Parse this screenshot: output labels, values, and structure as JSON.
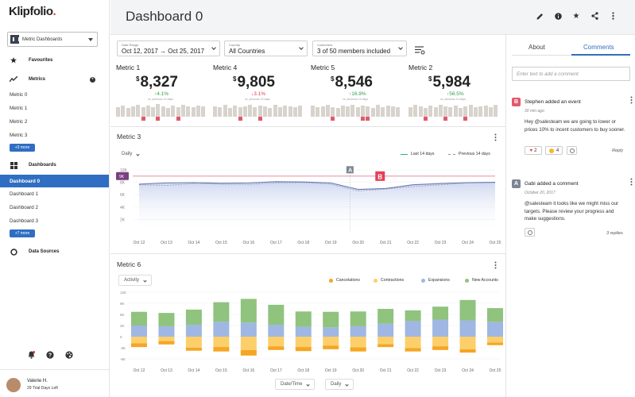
{
  "sidebar": {
    "logo": "Klipfolio",
    "workspace": "Metric Dashboards",
    "favourites_label": "Favourites",
    "metrics_label": "Metrics",
    "metrics": [
      "Metric 0",
      "Metric 1",
      "Metric 2",
      "Metric 3"
    ],
    "metrics_more": "+3 more",
    "dashboards_label": "Dashboards",
    "dashboards": [
      "Dashboard 0",
      "Dashboard 1",
      "Dashboard 2",
      "Dashboard 3"
    ],
    "dashboards_more": "+7 more",
    "datasources_label": "Data Sources",
    "user_name": "Valerie H.",
    "user_trial": "29 Trial Days Left"
  },
  "header": {
    "title": "Dashboard 0"
  },
  "filters": {
    "date_label": "Date Range",
    "date_value": "Oct 12, 2017 → Oct 25, 2017",
    "country_label": "Country",
    "country_value": "All Countries",
    "customers_label": "Customers",
    "customers_value": "3 of 50 members included"
  },
  "metrics": [
    {
      "name": "Metric 1",
      "currency": "$",
      "value": "8,327",
      "delta": "↑4.1%",
      "dir": "up",
      "caption": "vs. previous 14 days"
    },
    {
      "name": "Metric 4",
      "currency": "$",
      "value": "9,805",
      "delta": "↓3.1%",
      "dir": "down",
      "caption": "vs. previous 14 days"
    },
    {
      "name": "Metric 5",
      "currency": "$",
      "value": "8,546",
      "delta": "↑16.9%",
      "dir": "up",
      "caption": "vs. previous 14 days"
    },
    {
      "name": "Metric 2",
      "currency": "$",
      "value": "5,984",
      "delta": "↑56.5%",
      "dir": "up",
      "caption": "vs. previous 14 days"
    }
  ],
  "metric3": {
    "title": "Metric 3",
    "interval": "Daily",
    "legend_last": "Last 14 days",
    "legend_prev": "Previous 14 days",
    "target_label": "9K",
    "annotations": [
      "A",
      "B"
    ]
  },
  "metric6": {
    "title": "Metric 6",
    "view": "Activity",
    "legend": [
      "Cancelations",
      "Contractions",
      "Expansions",
      "New Accounts"
    ],
    "footer_dd1": "Date/Time",
    "footer_dd2": "Daily"
  },
  "colors": {
    "accent": "#2f6ec2",
    "line_last": "#2bb09a",
    "cancelations": "#f5a623",
    "contractions": "#fccf6b",
    "expansions": "#9fb7e2",
    "new_accounts": "#8fc37e",
    "negative": "#e25a6b"
  },
  "chart_data": [
    {
      "type": "line",
      "title": "Metric 3",
      "x": [
        "Oct 12",
        "Oct 13",
        "Oct 14",
        "Oct 15",
        "Oct 16",
        "Oct 17",
        "Oct 18",
        "Oct 19",
        "Oct 20",
        "Oct 21",
        "Oct 22",
        "Oct 23",
        "Oct 24",
        "Oct 25"
      ],
      "yticks": [
        "10K",
        "8K",
        "6K",
        "4K",
        "2K"
      ],
      "ylim": [
        0,
        10000
      ],
      "series": [
        {
          "name": "Last 14 days",
          "values": [
            7700,
            7900,
            7950,
            7850,
            7900,
            8100,
            8050,
            7900,
            6850,
            7000,
            7600,
            7800,
            7950,
            8000
          ]
        },
        {
          "name": "Previous 14 days",
          "values": [
            7600,
            7500,
            7800,
            7700,
            7650,
            7900,
            7950,
            7700,
            6600,
            6900,
            7300,
            7600,
            7900,
            7950
          ]
        }
      ],
      "target": 9000
    },
    {
      "type": "bar",
      "title": "Metric 6",
      "x": [
        "Oct 12",
        "Oct 13",
        "Oct 14",
        "Oct 15",
        "Oct 16",
        "Oct 17",
        "Oct 18",
        "Oct 19",
        "Oct 20",
        "Oct 21",
        "Oct 22",
        "Oct 23",
        "Oct 24",
        "Oct 25"
      ],
      "yticks": [
        "12K",
        "9K",
        "6K",
        "3K",
        "0",
        "-3K",
        "-6K"
      ],
      "ylim": [
        -6000,
        12000
      ],
      "series": [
        {
          "name": "Expansions",
          "values": [
            3000,
            2800,
            3200,
            4000,
            3800,
            3200,
            2700,
            2500,
            2800,
            3500,
            4200,
            4600,
            4400,
            4000
          ]
        },
        {
          "name": "New Accounts",
          "values": [
            3700,
            3600,
            4100,
            5300,
            6400,
            5400,
            4100,
            4200,
            4000,
            4000,
            2900,
            3500,
            5500,
            3700
          ]
        },
        {
          "name": "Contractions",
          "values": [
            -1800,
            -1200,
            -3000,
            -2800,
            -3600,
            -2600,
            -2800,
            -2400,
            -2900,
            -2000,
            -3100,
            -2600,
            -3400,
            -1600
          ]
        },
        {
          "name": "Cancelations",
          "values": [
            -1000,
            -900,
            -800,
            -1200,
            -1500,
            -1000,
            -1100,
            -1000,
            -1100,
            -800,
            -900,
            -1000,
            -900,
            -700
          ]
        }
      ]
    }
  ],
  "right_panel": {
    "tab_about": "About",
    "tab_comments": "Comments",
    "input_placeholder": "Enter text to add a comment",
    "comments": [
      {
        "badge": "B",
        "head": "Stephen added an event",
        "time": "30 min ago",
        "body": "Hey @salesteam we are going to lower or prices 10% to incent customers to buy sooner.",
        "reaction1": "2",
        "reaction2": "4",
        "action": "Reply"
      },
      {
        "badge": "A",
        "head": "Gabi added a comment",
        "time": "October 20, 2017",
        "body": "@salesteam it looks like we might miss our targets. Please review your prog­ress and make suggestions.",
        "action": "3 replies"
      }
    ]
  }
}
